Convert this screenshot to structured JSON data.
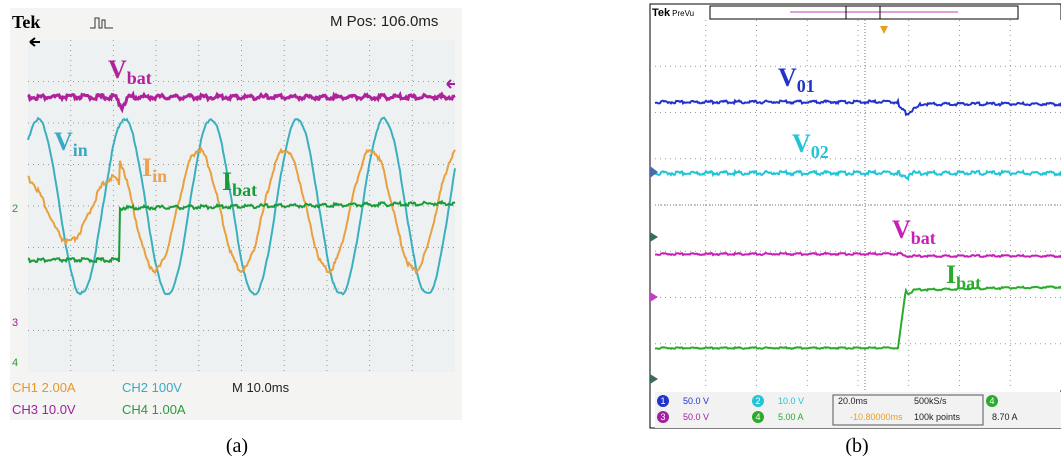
{
  "panel_a": {
    "brand": "Tek",
    "m_pos": "M Pos: 106.0ms",
    "labels": [
      {
        "main": "V",
        "sub": "bat"
      },
      {
        "main": "V",
        "sub": "in"
      },
      {
        "main": "I",
        "sub": "in"
      },
      {
        "main": "I",
        "sub": "bat"
      }
    ],
    "markers": [
      "2",
      "3",
      "4"
    ],
    "footer": [
      "CH1 2.00A",
      "CH2 100V",
      "M 10.0ms",
      "CH3 10.0V",
      "CH4 1.00A"
    ]
  },
  "panel_b": {
    "brand": "Tek",
    "mode": "PreVu",
    "labels": [
      {
        "main": "V",
        "sub": "01"
      },
      {
        "main": "V",
        "sub": "02"
      },
      {
        "main": "V",
        "sub": "bat"
      },
      {
        "main": "I",
        "sub": "bat"
      }
    ],
    "footer": [
      "1",
      "50.0 V",
      "2",
      "10.0 V",
      "3",
      "50.0 V",
      "4",
      "5.00 A",
      "20.0ms",
      "500kS/s",
      "-10.80000ms",
      "100k points",
      "4",
      "8.70 A"
    ]
  },
  "captions": [
    "(a)",
    "(b)"
  ]
}
